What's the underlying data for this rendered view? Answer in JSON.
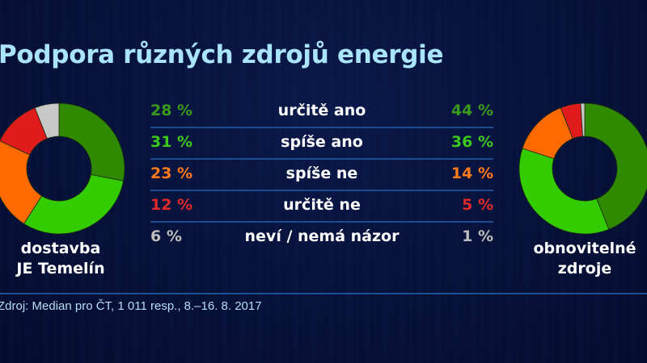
{
  "title": "Podpora různých zdrojů energie",
  "colors": {
    "background": "#07123a",
    "title": "#a9e4fb",
    "separator": "#1d4b8f",
    "urcite_ano": "#2f8a00",
    "spise_ano": "#33cc00",
    "spise_ne": "#ff6a00",
    "urcite_ne": "#e01b1b",
    "nevi": "#c8c8c8",
    "text_urcite_ano": "#3a9a1a",
    "text_spise_ano": "#3cc81c",
    "text_spise_ne": "#ff7a1a",
    "text_urcite_ne": "#e02a2a",
    "text_nevi": "#bdbdbd"
  },
  "left": {
    "caption_line1": "dostavba",
    "caption_line2": "JE Temelín"
  },
  "right": {
    "caption_line1": "obnovitelné",
    "caption_line2": "zdroje"
  },
  "rows": [
    {
      "label": "určitě ano",
      "left": "28 %",
      "right": "44 %"
    },
    {
      "label": "spíše ano",
      "left": "31 %",
      "right": "36 %"
    },
    {
      "label": "spíše ne",
      "left": "23 %",
      "right": "14 %"
    },
    {
      "label": "určitě ne",
      "left": "12 %",
      "right": "5 %"
    },
    {
      "label": "neví / nemá názor",
      "left": "6 %",
      "right": "1 %"
    }
  ],
  "source": "Zdroj: Median pro ČT, 1 011 resp., 8.–16. 8. 2017",
  "chart_data": [
    {
      "type": "pie",
      "variant": "donut",
      "title": "dostavba JE Temelín",
      "categories": [
        "určitě ano",
        "spíše ano",
        "spíše ne",
        "určitě ne",
        "neví / nemá názor"
      ],
      "values": [
        28,
        31,
        23,
        12,
        6
      ],
      "unit": "%",
      "colors": [
        "#2f8a00",
        "#33cc00",
        "#ff6a00",
        "#e01b1b",
        "#c8c8c8"
      ]
    },
    {
      "type": "pie",
      "variant": "donut",
      "title": "obnovitelné zdroje",
      "categories": [
        "určitě ano",
        "spíše ano",
        "spíše ne",
        "určitě ne",
        "neví / nemá názor"
      ],
      "values": [
        44,
        36,
        14,
        5,
        1
      ],
      "unit": "%",
      "colors": [
        "#2f8a00",
        "#33cc00",
        "#ff6a00",
        "#e01b1b",
        "#c8c8c8"
      ]
    }
  ]
}
